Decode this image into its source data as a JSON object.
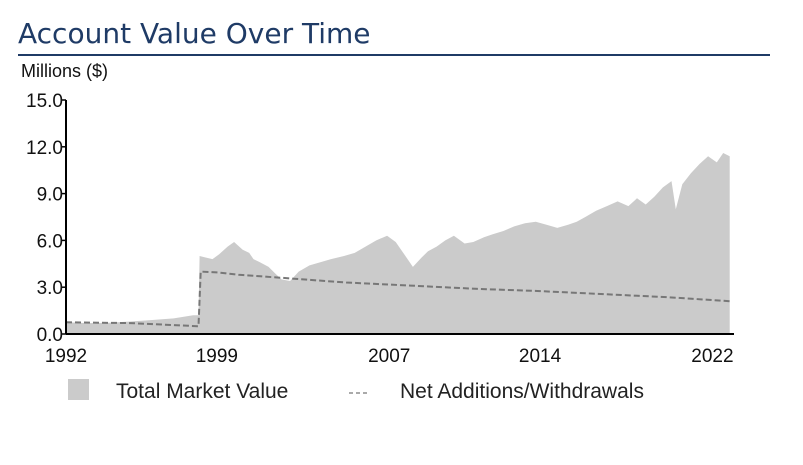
{
  "title": "Account Value Over Time",
  "chart_data": {
    "type": "area",
    "ylabel": "Millions ($)",
    "xlim": [
      1992,
      2023
    ],
    "ylim": [
      0,
      15
    ],
    "yticks": [
      "0.0",
      "3.0",
      "6.0",
      "9.0",
      "12.0",
      "15.0"
    ],
    "xticks": [
      {
        "value": 1992,
        "label": "1992"
      },
      {
        "value": 1999,
        "label": "1999"
      },
      {
        "value": 2007,
        "label": "2007"
      },
      {
        "value": 2014,
        "label": "2014"
      },
      {
        "value": 2022,
        "label": "2022"
      }
    ],
    "legend": "bottom",
    "series": [
      {
        "name": "Total Market Value",
        "style": "area",
        "color": "#cbcbcb",
        "x": [
          1992.0,
          1993.0,
          1994.0,
          1995.0,
          1996.0,
          1997.0,
          1997.9,
          1998.15,
          1998.2,
          1998.5,
          1998.8,
          1999.1,
          1999.5,
          1999.8,
          2000.2,
          2000.5,
          2000.7,
          2001.0,
          2001.4,
          2001.7,
          2002.0,
          2002.4,
          2002.8,
          2003.3,
          2003.8,
          2004.3,
          2004.9,
          2005.4,
          2005.9,
          2006.4,
          2006.9,
          2007.3,
          2007.7,
          2008.1,
          2008.5,
          2008.8,
          2009.2,
          2009.6,
          2010.0,
          2010.5,
          2010.9,
          2011.4,
          2011.8,
          2012.3,
          2012.8,
          2013.3,
          2013.8,
          2014.3,
          2014.8,
          2015.3,
          2015.7,
          2016.1,
          2016.6,
          2017.1,
          2017.6,
          2018.1,
          2018.5,
          2018.9,
          2019.3,
          2019.7,
          2020.1,
          2020.3,
          2020.6,
          2021.0,
          2021.4,
          2021.8,
          2022.2,
          2022.5,
          2022.8
        ],
        "values": [
          0.75,
          0.7,
          0.72,
          0.8,
          0.9,
          1.0,
          1.2,
          1.2,
          5.0,
          4.9,
          4.8,
          5.1,
          5.6,
          5.9,
          5.4,
          5.2,
          4.8,
          4.6,
          4.3,
          3.9,
          3.5,
          3.4,
          4.0,
          4.4,
          4.6,
          4.8,
          5.0,
          5.2,
          5.6,
          6.0,
          6.3,
          5.9,
          5.1,
          4.3,
          4.9,
          5.3,
          5.6,
          6.0,
          6.3,
          5.8,
          5.9,
          6.2,
          6.4,
          6.6,
          6.9,
          7.1,
          7.2,
          7.0,
          6.8,
          7.0,
          7.2,
          7.5,
          7.9,
          8.2,
          8.5,
          8.2,
          8.7,
          8.3,
          8.8,
          9.4,
          9.8,
          8.0,
          9.6,
          10.3,
          10.9,
          11.4,
          11.0,
          11.6,
          11.4
        ]
      },
      {
        "name": "Net Additions/Withdrawals",
        "style": "dashed-line",
        "color": "#777777",
        "x": [
          1992.0,
          1995.0,
          1998.1,
          1998.15,
          1998.25,
          1999.0,
          2000.0,
          2002.0,
          2005.0,
          2008.0,
          2011.0,
          2014.0,
          2017.0,
          2020.0,
          2022.8
        ],
        "values": [
          0.75,
          0.7,
          0.5,
          0.5,
          4.0,
          3.95,
          3.8,
          3.6,
          3.3,
          3.1,
          2.9,
          2.75,
          2.55,
          2.35,
          2.1
        ]
      }
    ]
  }
}
